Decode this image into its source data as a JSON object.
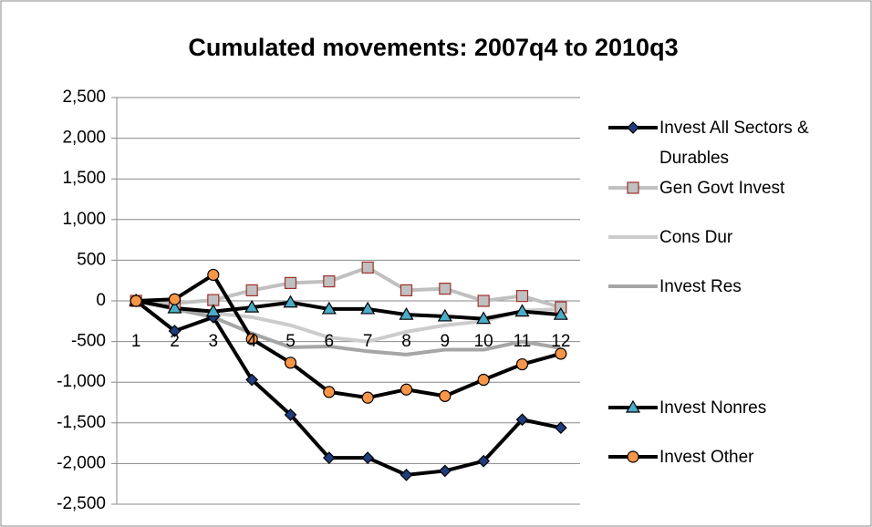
{
  "chart_data": {
    "type": "line",
    "title": "Cumulated movements: 2007q4 to 2010q3",
    "categories": [
      "1",
      "2",
      "3",
      "4",
      "5",
      "6",
      "7",
      "8",
      "9",
      "10",
      "11",
      "12"
    ],
    "ylim": [
      -2500,
      2500
    ],
    "yticks": [
      {
        "value": -2500,
        "label": "-2,500"
      },
      {
        "value": -2000,
        "label": "-2,000"
      },
      {
        "value": -1500,
        "label": "-1,500"
      },
      {
        "value": -1000,
        "label": "-1,000"
      },
      -500,
      0,
      500,
      {
        "value": 1000,
        "label": "1,000"
      },
      {
        "value": 1500,
        "label": "1,500"
      },
      {
        "value": 2000,
        "label": "2,000"
      },
      {
        "value": 2500,
        "label": "2,500"
      }
    ],
    "grid": true,
    "legend": "right",
    "series": [
      {
        "name": "Invest All Sectors & Durables",
        "color": "#000000",
        "marker": "diamond",
        "marker_color": "#1f3d7a",
        "marker_edge": "#000000",
        "values": [
          0,
          -370,
          -200,
          -970,
          -1400,
          -1930,
          -1930,
          -2140,
          -2090,
          -1970,
          -1460,
          -1560
        ]
      },
      {
        "name": "Gen Govt Invest",
        "color": "#c0c0c0",
        "marker": "square",
        "marker_color": "#c0c0c0",
        "marker_edge": "#a0302a",
        "values": [
          0,
          -30,
          10,
          130,
          220,
          240,
          410,
          130,
          150,
          0,
          60,
          -80
        ]
      },
      {
        "name": "Cons Dur",
        "color": "#cccccc",
        "marker": "none",
        "values": [
          0,
          -80,
          -150,
          -200,
          -300,
          -450,
          -500,
          -380,
          -300,
          -250,
          -120,
          -100
        ]
      },
      {
        "name": "Invest Res",
        "color": "#a6a6a6",
        "marker": "none",
        "values": [
          0,
          -100,
          -200,
          -400,
          -570,
          -560,
          -620,
          -660,
          -600,
          -600,
          -500,
          -580
        ]
      },
      {
        "name": "Invest Nonres",
        "color": "#000000",
        "marker": "triangle",
        "marker_color": "#4bacc6",
        "marker_edge": "#000000",
        "values": [
          0,
          -90,
          -130,
          -80,
          -20,
          -100,
          -100,
          -170,
          -190,
          -220,
          -130,
          -170
        ]
      },
      {
        "name": "Invest Other",
        "color": "#000000",
        "marker": "circle",
        "marker_color": "#f79646",
        "marker_edge": "#000000",
        "values": [
          0,
          20,
          320,
          -470,
          -760,
          -1120,
          -1190,
          -1090,
          -1170,
          -970,
          -780,
          -650
        ]
      }
    ]
  }
}
